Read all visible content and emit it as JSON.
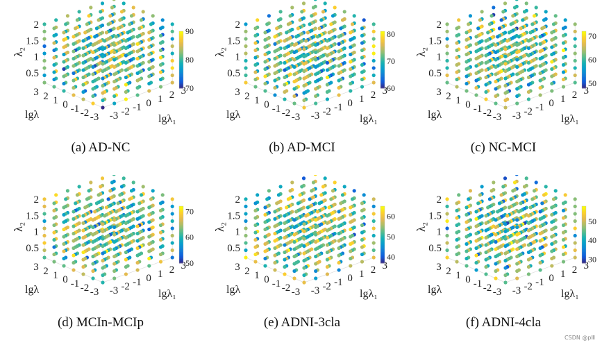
{
  "watermark": "CSDN @pⅢ",
  "chart_data": [
    {
      "type": "scatter3d",
      "caption": "(a)  AD-NC",
      "xlabel": "lgλ₁",
      "ylabel": "lgλ",
      "zlabel": "λ₂",
      "x": [
        -3,
        -2,
        -1,
        0,
        1,
        2,
        3
      ],
      "y": [
        -3,
        -2,
        -1,
        0,
        1,
        2,
        3
      ],
      "z_ticks": [
        0.5,
        1,
        1.5,
        2
      ],
      "z_range": [
        0.2,
        2
      ],
      "color_range": [
        70,
        90
      ],
      "colorbar_ticks": [
        70,
        80,
        90
      ],
      "colormap": "parula",
      "grid": true
    },
    {
      "type": "scatter3d",
      "caption": "(b)  AD-MCI",
      "xlabel": "lgλ₁",
      "ylabel": "lgλ",
      "zlabel": "λ₂",
      "x": [
        -3,
        -2,
        -1,
        0,
        1,
        2,
        3
      ],
      "y": [
        -3,
        -2,
        -1,
        0,
        1,
        2,
        3
      ],
      "z_ticks": [
        0.5,
        1,
        1.5,
        2
      ],
      "z_range": [
        0.2,
        2
      ],
      "color_range": [
        60,
        81
      ],
      "colorbar_ticks": [
        60,
        70,
        80
      ],
      "colormap": "parula",
      "grid": true
    },
    {
      "type": "scatter3d",
      "caption": "(c)  NC-MCI",
      "xlabel": "lgλ₁",
      "ylabel": "lgλ",
      "zlabel": "λ₂",
      "x": [
        -3,
        -2,
        -1,
        0,
        1,
        2,
        3
      ],
      "y": [
        -3,
        -2,
        -1,
        0,
        1,
        2,
        3
      ],
      "z_ticks": [
        0.5,
        1,
        1.5,
        2
      ],
      "z_range": [
        0.2,
        2
      ],
      "color_range": [
        48,
        72
      ],
      "colorbar_ticks": [
        50,
        60,
        70
      ],
      "colormap": "parula",
      "grid": true
    },
    {
      "type": "scatter3d",
      "caption": "(d)  MCIn-MCIp",
      "xlabel": "lgλ₁",
      "ylabel": "lgλ",
      "zlabel": "λ₂",
      "x": [
        -3,
        -2,
        -1,
        0,
        1,
        2,
        3
      ],
      "y": [
        -3,
        -2,
        -1,
        0,
        1,
        2,
        3
      ],
      "z_ticks": [
        0.5,
        1,
        1.5,
        2
      ],
      "z_range": [
        0.2,
        2
      ],
      "color_range": [
        50,
        72
      ],
      "colorbar_ticks": [
        50,
        60,
        70
      ],
      "colormap": "parula",
      "grid": true
    },
    {
      "type": "scatter3d",
      "caption": "(e)  ADNI-3cla",
      "xlabel": "lgλ₁",
      "ylabel": "lgλ",
      "zlabel": "λ₂",
      "x": [
        -3,
        -2,
        -1,
        0,
        1,
        2,
        3
      ],
      "y": [
        -3,
        -2,
        -1,
        0,
        1,
        2,
        3
      ],
      "z_ticks": [
        0.5,
        1,
        1.5,
        2
      ],
      "z_range": [
        0.2,
        2
      ],
      "color_range": [
        37,
        65
      ],
      "colorbar_ticks": [
        40,
        50,
        60
      ],
      "colormap": "parula",
      "grid": true
    },
    {
      "type": "scatter3d",
      "caption": "(f)  ADNI-4cla",
      "xlabel": "lgλ₁",
      "ylabel": "lgλ",
      "zlabel": "λ₂",
      "x": [
        -3,
        -2,
        -1,
        0,
        1,
        2,
        3
      ],
      "y": [
        -3,
        -2,
        -1,
        0,
        1,
        2,
        3
      ],
      "z_ticks": [
        0.5,
        1,
        1.5,
        2
      ],
      "z_range": [
        0.2,
        2
      ],
      "color_range": [
        28,
        58
      ],
      "colorbar_ticks": [
        30,
        40,
        50
      ],
      "colormap": "parula",
      "grid": true
    }
  ]
}
